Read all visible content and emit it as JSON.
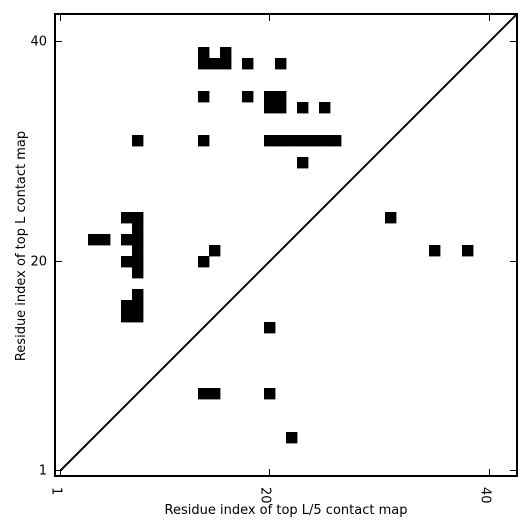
{
  "chart_data": {
    "type": "heatmap",
    "title": "",
    "xlabel": "Residue index of top L/5 contact map",
    "ylabel": "Residue index of top L contact map",
    "xlim": [
      0.5,
      42.5
    ],
    "ylim": [
      0.5,
      42.5
    ],
    "x_ticks": [
      {
        "value": 1,
        "label": "1"
      },
      {
        "value": 20,
        "label": "20"
      },
      {
        "value": 40,
        "label": "40"
      }
    ],
    "y_ticks": [
      {
        "value": 1,
        "label": "1"
      },
      {
        "value": 20,
        "label": "20"
      },
      {
        "value": 40,
        "label": "40"
      }
    ],
    "diagonal": true,
    "cell_color": "#000000",
    "upper_triangle_contacts": [
      [
        14,
        39
      ],
      [
        16,
        39
      ],
      [
        14,
        38
      ],
      [
        15,
        38
      ],
      [
        16,
        38
      ],
      [
        18,
        38
      ],
      [
        21,
        38
      ],
      [
        14,
        35
      ],
      [
        18,
        35
      ],
      [
        20,
        35
      ],
      [
        21,
        35
      ],
      [
        20,
        34
      ],
      [
        21,
        34
      ],
      [
        23,
        34
      ],
      [
        25,
        34
      ],
      [
        8,
        31
      ],
      [
        14,
        31
      ],
      [
        20,
        31
      ],
      [
        21,
        31
      ],
      [
        22,
        31
      ],
      [
        23,
        31
      ],
      [
        24,
        31
      ],
      [
        25,
        31
      ],
      [
        26,
        31
      ],
      [
        23,
        29
      ],
      [
        7,
        24
      ],
      [
        8,
        24
      ],
      [
        8,
        23
      ],
      [
        4,
        22
      ],
      [
        5,
        22
      ],
      [
        7,
        22
      ],
      [
        8,
        22
      ],
      [
        8,
        21
      ],
      [
        15,
        21
      ],
      [
        7,
        20
      ],
      [
        8,
        20
      ],
      [
        14,
        20
      ],
      [
        8,
        19
      ],
      [
        8,
        17
      ],
      [
        7,
        16
      ],
      [
        8,
        16
      ],
      [
        7,
        15
      ],
      [
        8,
        15
      ],
      [
        20,
        14
      ],
      [
        14,
        8
      ],
      [
        15,
        8
      ],
      [
        20,
        8
      ],
      [
        22,
        4
      ]
    ],
    "lower_triangle_contacts": [
      [
        31,
        24
      ],
      [
        35,
        21
      ],
      [
        38,
        21
      ]
    ]
  }
}
